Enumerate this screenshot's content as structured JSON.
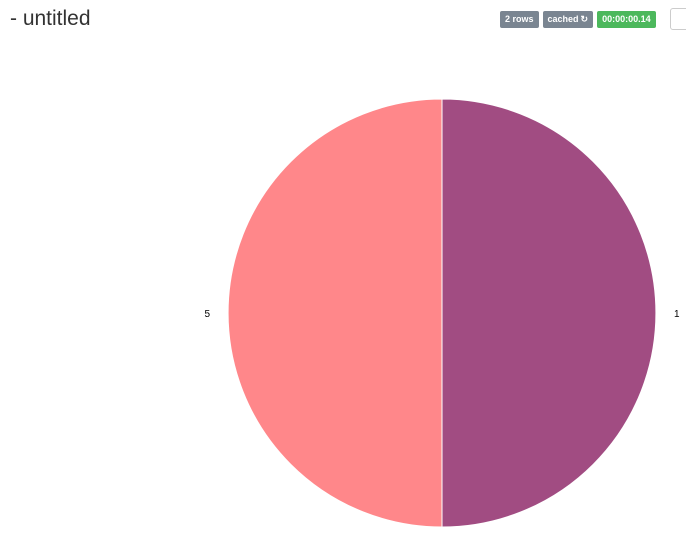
{
  "header": {
    "title": "- untitled",
    "rows_badge": "2 rows",
    "cached_badge": "cached",
    "refresh_icon": "↻",
    "timer_badge": "00:00:00.14"
  },
  "colors": {
    "badge_gray": "#7a8591",
    "badge_green": "#4cb85c"
  },
  "chart_data": {
    "type": "pie",
    "slices": [
      {
        "label": "1",
        "value": 1,
        "color": "#a14c82"
      },
      {
        "label": "5",
        "value": 1,
        "color": "#ff878a"
      }
    ]
  }
}
